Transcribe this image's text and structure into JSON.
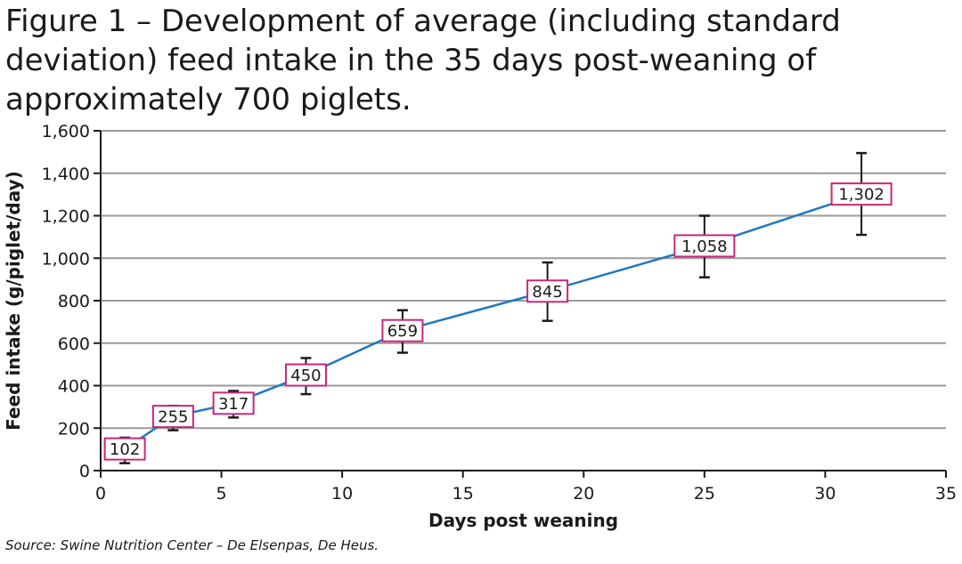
{
  "figure": {
    "title_lines": [
      "Figure 1 – Development of average (including standard",
      "deviation) feed intake in the 35 days post-weaning of",
      "approximately 700 piglets."
    ],
    "source": "Source: Swine Nutrition Center – De Elsenpas, De Heus."
  },
  "chart_data": {
    "type": "line",
    "title": "Figure 1 – Development of average (including standard deviation) feed intake in the 35 days post-weaning of approximately 700 piglets.",
    "xlabel": "Days post weaning",
    "ylabel": "Feed intake (g/piglet/day)",
    "xlim": [
      0,
      35
    ],
    "ylim": [
      0,
      1600
    ],
    "x_ticks": [
      0,
      5,
      10,
      15,
      20,
      25,
      30,
      35
    ],
    "y_ticks": [
      0,
      200,
      400,
      600,
      800,
      1000,
      1200,
      1400,
      1600
    ],
    "y_tick_labels": [
      "0",
      "200",
      "400",
      "600",
      "800",
      "1,000",
      "1,200",
      "1,400",
      "1,600"
    ],
    "grid": "horizontal",
    "line_color": "#1f78c1",
    "label_border_color": "#c8287a",
    "series": [
      {
        "x": [
          1,
          3,
          5.5,
          8.5,
          12.5,
          18.5,
          25,
          31.5
        ],
        "y": [
          102,
          255,
          317,
          450,
          659,
          845,
          1058,
          1302
        ],
        "labels": [
          "102",
          "255",
          "317",
          "450",
          "659",
          "845",
          "1,058",
          "1,302"
        ],
        "error_low": [
          35,
          190,
          250,
          360,
          555,
          705,
          910,
          1110
        ],
        "error_high": [
          155,
          305,
          375,
          530,
          755,
          980,
          1200,
          1495
        ]
      }
    ]
  }
}
